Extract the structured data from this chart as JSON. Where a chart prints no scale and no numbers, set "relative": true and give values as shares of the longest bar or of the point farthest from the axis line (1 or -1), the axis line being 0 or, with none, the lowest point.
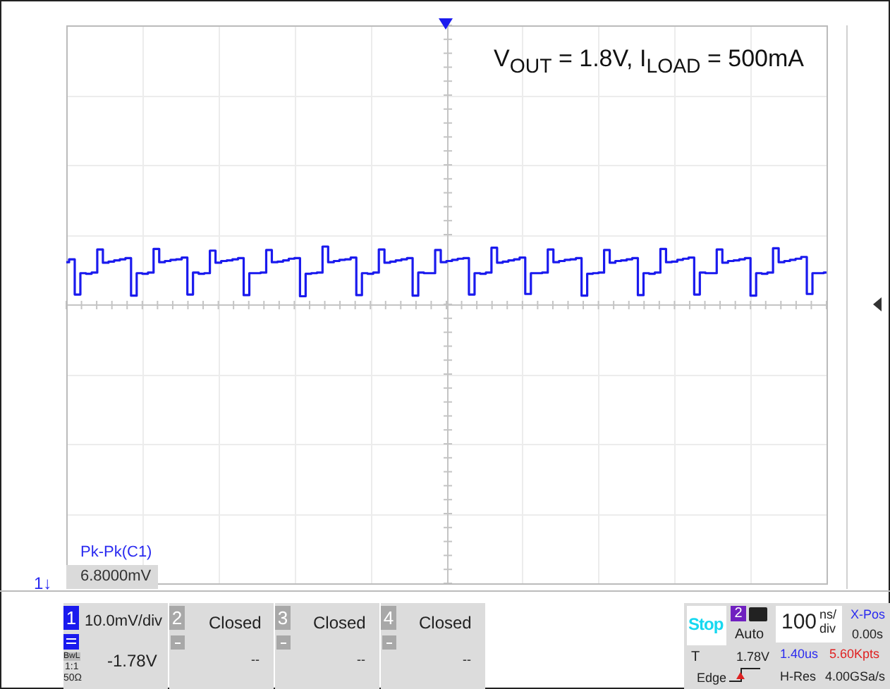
{
  "chart_data": {
    "type": "step",
    "title": "V$_{OUT}$ = 1.8V, I$_{LOAD}$ = 500mA",
    "relative": true,
    "grid": true,
    "tick_labels": false,
    "marker": "none",
    "categories": [
      null,
      null,
      null,
      null,
      null,
      null,
      null,
      null,
      null,
      null,
      null,
      null,
      null,
      null,
      null,
      null,
      null,
      null,
      null,
      null,
      null,
      null,
      null,
      null,
      null,
      null,
      null,
      null,
      null,
      null,
      null,
      null,
      null,
      null,
      null,
      null,
      null,
      null,
      null,
      null,
      null,
      null,
      null,
      null,
      null,
      null,
      null,
      null,
      null,
      null,
      null,
      null,
      null,
      null,
      null,
      null,
      null,
      null,
      null,
      null,
      null,
      null,
      null,
      null,
      null,
      null,
      null,
      null,
      null,
      null,
      null,
      null,
      null,
      null,
      null,
      null,
      null,
      null,
      null,
      null,
      null,
      null,
      null,
      null,
      null,
      null,
      null,
      null,
      null,
      null,
      null,
      null,
      null,
      null,
      null,
      null,
      null,
      null,
      null,
      null,
      null,
      null,
      null,
      null,
      null,
      null,
      null,
      null,
      null,
      null,
      null,
      null,
      null,
      null,
      null,
      null,
      null,
      null,
      null,
      null,
      null,
      null,
      null,
      null,
      null,
      null,
      null,
      null,
      null,
      null,
      null,
      null,
      null,
      null,
      null,
      null
    ],
    "series": [
      {
        "color": "#1a1aee",
        "values": [
          0.73,
          0.78,
          0.17,
          0.54,
          0.53,
          0.55,
          0.95,
          0.72,
          0.74,
          0.76,
          0.78,
          0.8,
          0.15,
          0.54,
          0.53,
          0.55,
          0.96,
          0.73,
          0.75,
          0.77,
          0.78,
          0.81,
          0.17,
          0.55,
          0.53,
          0.54,
          0.93,
          0.72,
          0.75,
          0.76,
          0.78,
          0.8,
          0.16,
          0.54,
          0.54,
          0.55,
          0.94,
          0.73,
          0.74,
          0.76,
          0.79,
          0.8,
          0.14,
          0.53,
          0.54,
          0.55,
          1.0,
          0.73,
          0.75,
          0.77,
          0.78,
          0.81,
          0.16,
          0.54,
          0.53,
          0.55,
          0.95,
          0.72,
          0.74,
          0.76,
          0.78,
          0.8,
          0.15,
          0.55,
          0.54,
          0.54,
          0.94,
          0.73,
          0.75,
          0.77,
          0.79,
          0.8,
          0.17,
          0.54,
          0.53,
          0.55,
          0.98,
          0.72,
          0.74,
          0.76,
          0.78,
          0.81,
          0.18,
          0.54,
          0.54,
          0.55,
          0.95,
          0.73,
          0.75,
          0.77,
          0.78,
          0.8,
          0.15,
          0.53,
          0.54,
          0.55,
          0.94,
          0.72,
          0.75,
          0.76,
          0.78,
          0.8,
          0.16,
          0.54,
          0.53,
          0.55,
          0.96,
          0.73,
          0.74,
          0.77,
          0.79,
          0.81,
          0.17,
          0.55,
          0.54,
          0.54,
          0.95,
          0.72,
          0.75,
          0.76,
          0.78,
          0.8,
          0.15,
          0.54,
          0.53,
          0.55,
          0.97,
          0.73,
          0.75,
          0.77,
          0.79,
          0.82,
          0.18,
          0.54,
          0.54,
          0.55
        ]
      }
    ],
    "annotations": [
      "Pk-Pk(C1)",
      "6.8000mV",
      "1↓",
      "1",
      "10.0mV/div",
      "-1.78V",
      "BwL",
      "1:1",
      "50Ω",
      "2",
      "Closed",
      "--",
      "3",
      "Closed",
      "--",
      "4",
      "Closed",
      "--",
      "Stop",
      "2",
      "Auto",
      "100",
      "ns/",
      "div",
      "X-Pos",
      "0.00s",
      "T",
      "1.78V",
      "1.40us",
      "5.60Kpts",
      "Edge",
      "H-Res",
      "4.00GSa/s"
    ]
  }
}
